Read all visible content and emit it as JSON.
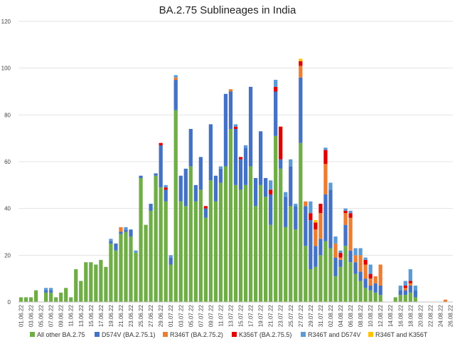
{
  "chart_data": {
    "type": "bar",
    "stacked": true,
    "title": "BA.2.75 Sublineages in India",
    "xlabel": "",
    "ylabel": "",
    "ylim": [
      0,
      120
    ],
    "yticks": [
      0,
      20,
      40,
      60,
      80,
      100,
      120
    ],
    "grid": true,
    "legend_position": "bottom",
    "x_tick_labels": [
      "01.06.22",
      "03.06.22",
      "05.06.22",
      "07.06.22",
      "09.06.22",
      "11.06.22",
      "13.06.22",
      "15.06.22",
      "17.06.22",
      "19.06.22",
      "21.06.22",
      "23.06.22",
      "25.06.22",
      "27.06.22",
      "29.06.22",
      "01.07.22",
      "03.07.22",
      "05.07.22",
      "07.07.22",
      "09.07.22",
      "11.07.22",
      "13.07.22",
      "15.07.22",
      "17.07.22",
      "19.07.22",
      "21.07.22",
      "23.07.22",
      "25.07.22",
      "27.07.22",
      "29.07.22",
      "31.07.22",
      "02.08.22",
      "04.08.22",
      "06.08.22",
      "08.08.22",
      "10.08.22",
      "12.08.22",
      "14.08.22",
      "16.08.22",
      "18.08.22",
      "20.08.22",
      "22.08.22",
      "24.08.22",
      "26.08.22"
    ],
    "categories": [
      "01.06.22",
      "02.06.22",
      "03.06.22",
      "04.06.22",
      "05.06.22",
      "06.06.22",
      "07.06.22",
      "08.06.22",
      "09.06.22",
      "10.06.22",
      "11.06.22",
      "12.06.22",
      "13.06.22",
      "14.06.22",
      "15.06.22",
      "16.06.22",
      "17.06.22",
      "18.06.22",
      "19.06.22",
      "20.06.22",
      "21.06.22",
      "22.06.22",
      "23.06.22",
      "24.06.22",
      "25.06.22",
      "26.06.22",
      "27.06.22",
      "28.06.22",
      "29.06.22",
      "30.06.22",
      "01.07.22",
      "02.07.22",
      "03.07.22",
      "04.07.22",
      "05.07.22",
      "06.07.22",
      "07.07.22",
      "08.07.22",
      "09.07.22",
      "10.07.22",
      "11.07.22",
      "12.07.22",
      "13.07.22",
      "14.07.22",
      "15.07.22",
      "16.07.22",
      "17.07.22",
      "18.07.22",
      "19.07.22",
      "20.07.22",
      "21.07.22",
      "22.07.22",
      "23.07.22",
      "24.07.22",
      "25.07.22",
      "26.07.22",
      "27.07.22",
      "28.07.22",
      "29.07.22",
      "30.07.22",
      "31.07.22",
      "01.08.22",
      "02.08.22",
      "03.08.22",
      "04.08.22",
      "05.08.22",
      "06.08.22",
      "07.08.22",
      "08.08.22",
      "09.08.22",
      "10.08.22",
      "11.08.22",
      "12.08.22",
      "13.08.22",
      "14.08.22",
      "15.08.22",
      "16.08.22",
      "17.08.22",
      "18.08.22",
      "19.08.22",
      "20.08.22",
      "21.08.22",
      "22.08.22",
      "23.08.22",
      "24.08.22",
      "25.08.22",
      "26.08.22"
    ],
    "series": [
      {
        "name": "All other BA.2.75",
        "color": "#70ad47",
        "values": [
          2,
          2,
          2,
          5,
          0,
          4,
          4,
          2,
          4,
          6,
          2,
          14,
          9,
          17,
          17,
          16,
          18,
          15,
          25,
          22,
          29,
          30,
          28,
          21,
          53,
          33,
          39,
          54,
          49,
          43,
          16,
          82,
          43,
          41,
          58,
          43,
          48,
          36,
          52,
          43,
          51,
          58,
          74,
          50,
          48,
          50,
          58,
          41,
          50,
          45,
          33,
          71,
          57,
          32,
          41,
          31,
          68,
          24,
          14,
          15,
          20,
          26,
          23,
          11,
          15,
          24,
          17,
          12,
          9,
          6,
          5,
          4,
          3,
          0,
          0,
          2,
          3,
          3,
          4,
          2,
          0,
          0,
          0,
          0,
          0,
          0,
          0
        ]
      },
      {
        "name": "D574V (BA.2.75.1)",
        "color": "#4472c4",
        "values": [
          0,
          0,
          0,
          0,
          0,
          1,
          1,
          0,
          0,
          0,
          0,
          0,
          0,
          0,
          0,
          0,
          0,
          0,
          1,
          3,
          1,
          1,
          3,
          0,
          1,
          0,
          3,
          1,
          18,
          5,
          3,
          13,
          11,
          16,
          16,
          7,
          14,
          4,
          24,
          11,
          6,
          31,
          16,
          24,
          13,
          16,
          34,
          12,
          23,
          8,
          13,
          19,
          4,
          13,
          17,
          10,
          28,
          17,
          21,
          9,
          7,
          20,
          25,
          8,
          3,
          9,
          5,
          5,
          4,
          4,
          2,
          4,
          4,
          0,
          0,
          0,
          2,
          2,
          3,
          3,
          0,
          0,
          0,
          0,
          0,
          0,
          0
        ]
      },
      {
        "name": "R346T (BA.2.75.2)",
        "color": "#ed7d31",
        "values": [
          0,
          0,
          0,
          0,
          0,
          0,
          0,
          0,
          0,
          0,
          0,
          0,
          0,
          0,
          0,
          0,
          0,
          0,
          0,
          0,
          2,
          0,
          0,
          0,
          0,
          0,
          0,
          0,
          0,
          0,
          0,
          1,
          0,
          0,
          0,
          0,
          0,
          0,
          0,
          0,
          0,
          0,
          1,
          0,
          0,
          0,
          0,
          0,
          0,
          0,
          0,
          0,
          0,
          0,
          0,
          0,
          5,
          2,
          0,
          7,
          11,
          13,
          0,
          6,
          1,
          5,
          14,
          3,
          7,
          6,
          3,
          3,
          9,
          0,
          0,
          0,
          0,
          1,
          1,
          0,
          0,
          0,
          0,
          0,
          0,
          1,
          0
        ]
      },
      {
        "name": "K356T (BA.2.75.5)",
        "color": "#e00000",
        "values": [
          0,
          0,
          0,
          0,
          0,
          0,
          0,
          0,
          0,
          0,
          0,
          0,
          0,
          0,
          0,
          0,
          0,
          0,
          0,
          0,
          0,
          0,
          0,
          0,
          0,
          0,
          0,
          0,
          1,
          1,
          0,
          0,
          0,
          0,
          0,
          0,
          0,
          1,
          0,
          0,
          0,
          0,
          0,
          1,
          1,
          0,
          0,
          0,
          0,
          0,
          2,
          2,
          14,
          0,
          0,
          0,
          2,
          0,
          3,
          3,
          4,
          6,
          0,
          0,
          2,
          1,
          2,
          0,
          0,
          2,
          2,
          0,
          0,
          0,
          0,
          0,
          0,
          1,
          1,
          0,
          0,
          0,
          0,
          0,
          0,
          0,
          0
        ]
      },
      {
        "name": "R346T and D574V",
        "color": "#5b9bd5",
        "values": [
          0,
          0,
          0,
          0,
          0,
          1,
          1,
          0,
          0,
          0,
          0,
          0,
          0,
          0,
          0,
          0,
          0,
          0,
          1,
          0,
          0,
          1,
          0,
          1,
          0,
          0,
          0,
          0,
          0,
          1,
          1,
          1,
          0,
          0,
          0,
          0,
          0,
          0,
          0,
          0,
          1,
          0,
          0,
          1,
          0,
          1,
          0,
          0,
          0,
          0,
          4,
          3,
          0,
          2,
          3,
          1,
          0,
          0,
          5,
          0,
          0,
          1,
          3,
          3,
          1,
          1,
          1,
          3,
          3,
          1,
          4,
          0,
          0,
          0,
          0,
          0,
          2,
          2,
          5,
          2,
          0,
          0,
          0,
          0,
          0,
          0,
          0
        ]
      },
      {
        "name": "R346T and K356T",
        "color": "#ffc000",
        "values": [
          0,
          0,
          0,
          0,
          0,
          0,
          0,
          0,
          0,
          0,
          0,
          0,
          0,
          0,
          0,
          0,
          0,
          0,
          0,
          0,
          0,
          0,
          0,
          0,
          0,
          0,
          0,
          0,
          0,
          0,
          0,
          0,
          0,
          0,
          0,
          0,
          0,
          0,
          0,
          0,
          0,
          0,
          0,
          0,
          0,
          0,
          0,
          0,
          0,
          0,
          0,
          0,
          0,
          0,
          0,
          0,
          1,
          0,
          0,
          1,
          0,
          0,
          0,
          0,
          0,
          0,
          0,
          0,
          0,
          0,
          0,
          0,
          0,
          0,
          0,
          0,
          0,
          0,
          0,
          0,
          0,
          0,
          0,
          0,
          0,
          0,
          0
        ]
      }
    ]
  }
}
